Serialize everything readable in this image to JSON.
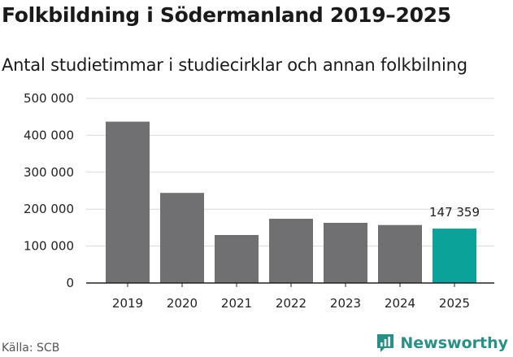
{
  "title": "Folkbildning i Södermanland 2019–2025",
  "subtitle": "Antal studietimmar i studiecirklar och annan folkbilning",
  "source": "Källa: SCB",
  "brand": {
    "name": "Newsworthy",
    "icon": "newsworthy-logo-icon"
  },
  "colors": {
    "bar": "#707072",
    "highlight": "#0ba299",
    "grid": "#d9d9d9",
    "axis": "#222222",
    "brand": "#2a8f86"
  },
  "chart_data": {
    "type": "bar",
    "title": "Folkbildning i Södermanland 2019–2025",
    "subtitle": "Antal studietimmar i studiecirklar och annan folkbilning",
    "xlabel": "",
    "ylabel": "",
    "categories": [
      "2019",
      "2020",
      "2021",
      "2022",
      "2023",
      "2024",
      "2025"
    ],
    "values": [
      437000,
      244000,
      130000,
      174000,
      163000,
      157000,
      147359
    ],
    "highlight_index": 6,
    "data_labels": [
      {
        "index": 6,
        "text": "147 359"
      }
    ],
    "ylim": [
      0,
      500000
    ],
    "yticks": [
      {
        "value": 0,
        "label": "0"
      },
      {
        "value": 100000,
        "label": "100 000"
      },
      {
        "value": 200000,
        "label": "200 000"
      },
      {
        "value": 300000,
        "label": "300 000"
      },
      {
        "value": 400000,
        "label": "400 000"
      },
      {
        "value": 500000,
        "label": "500 000"
      }
    ],
    "grid": true
  }
}
